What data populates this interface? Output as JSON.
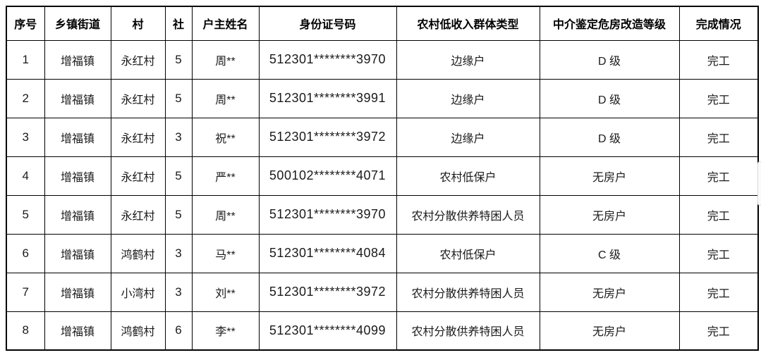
{
  "table": {
    "columns": [
      {
        "key": "index",
        "label": "序号"
      },
      {
        "key": "township",
        "label": "乡镇街道"
      },
      {
        "key": "village",
        "label": "村"
      },
      {
        "key": "community",
        "label": "社"
      },
      {
        "key": "householder",
        "label": "户主姓名"
      },
      {
        "key": "id_number",
        "label": "身份证号码"
      },
      {
        "key": "group_type",
        "label": "农村低收入群体类型"
      },
      {
        "key": "appraisal_level",
        "label": "中介鉴定危房改造等级"
      },
      {
        "key": "completion",
        "label": "完成情况"
      }
    ],
    "rows": [
      [
        "1",
        "增福镇",
        "永红村",
        "5",
        "周**",
        "512301********3970",
        "边缘户",
        "D 级",
        "完工"
      ],
      [
        "2",
        "增福镇",
        "永红村",
        "5",
        "周**",
        "512301********3991",
        "边缘户",
        "D 级",
        "完工"
      ],
      [
        "3",
        "增福镇",
        "永红村",
        "3",
        "祝**",
        "512301********3972",
        "边缘户",
        "D 级",
        "完工"
      ],
      [
        "4",
        "增福镇",
        "永红村",
        "5",
        "严**",
        "500102********4071",
        "农村低保户",
        "无房户",
        "完工"
      ],
      [
        "5",
        "增福镇",
        "永红村",
        "5",
        "周**",
        "512301********3970",
        "农村分散供养特困人员",
        "无房户",
        "完工"
      ],
      [
        "6",
        "增福镇",
        "鸿鹤村",
        "3",
        "马**",
        "512301********4084",
        "农村低保户",
        "C 级",
        "完工"
      ],
      [
        "7",
        "增福镇",
        "小湾村",
        "3",
        "刘**",
        "512301********3972",
        "农村分散供养特困人员",
        "无房户",
        "完工"
      ],
      [
        "8",
        "增福镇",
        "鸿鹤村",
        "6",
        "李**",
        "512301********4099",
        "农村分散供养特困人员",
        "无房户",
        "完工"
      ]
    ]
  },
  "colors": {
    "border": "#000000",
    "text": "#1a1a1a",
    "background": "#ffffff"
  }
}
